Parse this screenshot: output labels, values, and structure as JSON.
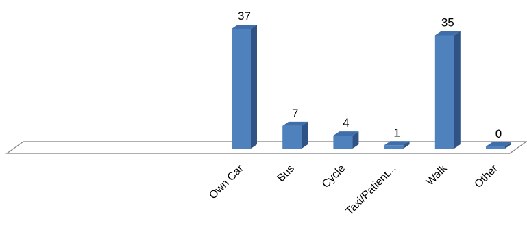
{
  "chart_data": {
    "type": "bar",
    "categories": [
      "Own Car",
      "Bus",
      "Cycle",
      "Taxi/Patient...",
      "Walk",
      "Other"
    ],
    "values": [
      37,
      7,
      4,
      1,
      35,
      0
    ],
    "title": "",
    "xlabel": "",
    "ylabel": "",
    "ylim": [
      0,
      37
    ],
    "grid": false,
    "legend": "none",
    "style": "3d-column",
    "colors": {
      "bar_front": "#4F81BD",
      "bar_side": "#2F5384",
      "bar_top": "#3F6EAA",
      "floor_stroke": "#7F7F7F",
      "floor_fill": "#FFFFFF"
    }
  }
}
